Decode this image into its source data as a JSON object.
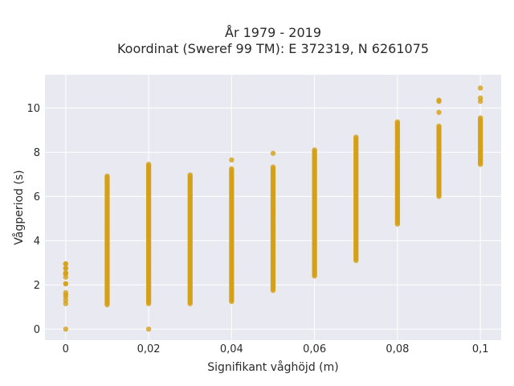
{
  "chart_data": {
    "type": "scatter",
    "title_line1": "År 1979 - 2019",
    "title_line2": "Koordinat (Sweref 99 TM): E 372319, N 6261075",
    "xlabel": "Signifikant våghöjd (m)",
    "ylabel": "Vågperiod (s)",
    "xlim": [
      -0.005,
      0.105
    ],
    "ylim": [
      -0.5,
      11.5
    ],
    "x_ticks": [
      0,
      0.02,
      0.04,
      0.06,
      0.08,
      0.1
    ],
    "x_tick_labels": [
      "0",
      "0,02",
      "0,04",
      "0,06",
      "0,08",
      "0,1"
    ],
    "y_ticks": [
      0,
      2,
      4,
      6,
      8,
      10
    ],
    "y_tick_labels": [
      "0",
      "2",
      "4",
      "6",
      "8",
      "10"
    ],
    "grid": true,
    "marker_color": "#d4a017",
    "background_color": "#e9e9f1",
    "columns": [
      {
        "x": 0,
        "min": 1.15,
        "max": 2.95,
        "outliers": [
          0,
          2.05,
          2.5,
          2.75,
          2.95
        ]
      },
      {
        "x": 0.01,
        "min": 1.1,
        "max": 6.95,
        "outliers": []
      },
      {
        "x": 0.02,
        "min": 1.15,
        "max": 7.5,
        "outliers": [
          0
        ]
      },
      {
        "x": 0.03,
        "min": 1.15,
        "max": 7.0,
        "outliers": []
      },
      {
        "x": 0.04,
        "min": 1.25,
        "max": 7.3,
        "outliers": [
          7.65
        ]
      },
      {
        "x": 0.05,
        "min": 1.75,
        "max": 7.35,
        "outliers": [
          7.95
        ]
      },
      {
        "x": 0.06,
        "min": 2.4,
        "max": 8.1,
        "outliers": []
      },
      {
        "x": 0.07,
        "min": 3.1,
        "max": 8.7,
        "outliers": []
      },
      {
        "x": 0.08,
        "min": 4.75,
        "max": 9.4,
        "outliers": []
      },
      {
        "x": 0.09,
        "min": 6.0,
        "max": 9.2,
        "outliers": [
          9.8,
          10.3,
          10.35
        ]
      },
      {
        "x": 0.1,
        "min": 7.45,
        "max": 9.6,
        "outliers": [
          10.3,
          10.45,
          10.9
        ]
      }
    ]
  }
}
